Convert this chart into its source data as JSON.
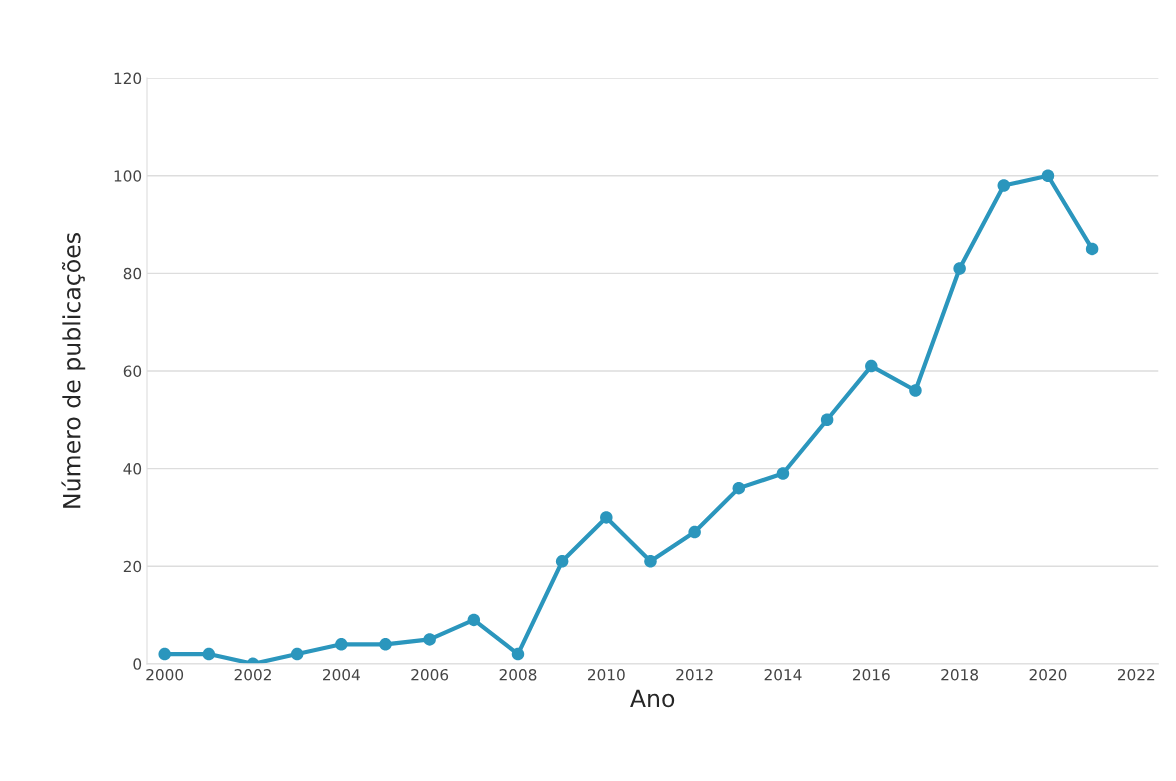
{
  "chart_data": {
    "type": "line",
    "xlabel": "Ano",
    "ylabel": "Número de publicações",
    "x": [
      2000,
      2001,
      2002,
      2003,
      2004,
      2005,
      2006,
      2007,
      2008,
      2009,
      2010,
      2011,
      2012,
      2013,
      2014,
      2015,
      2016,
      2017,
      2018,
      2019,
      2020,
      2021
    ],
    "series": [
      {
        "color": "#2b96bd",
        "values": [
          2,
          2,
          0,
          2,
          4,
          4,
          5,
          9,
          2,
          21,
          30,
          21,
          27,
          36,
          39,
          50,
          61,
          56,
          81,
          98,
          100,
          85
        ]
      }
    ],
    "xlim": [
      1999.6,
      2022.5
    ],
    "xticks": [
      2000,
      2002,
      2004,
      2006,
      2008,
      2010,
      2012,
      2014,
      2016,
      2018,
      2020,
      2022
    ],
    "ylim": [
      0,
      120
    ],
    "yticks": [
      0,
      20,
      40,
      60,
      80,
      100,
      120
    ],
    "grid": "y",
    "marker": "circle",
    "line_style": "solid"
  }
}
